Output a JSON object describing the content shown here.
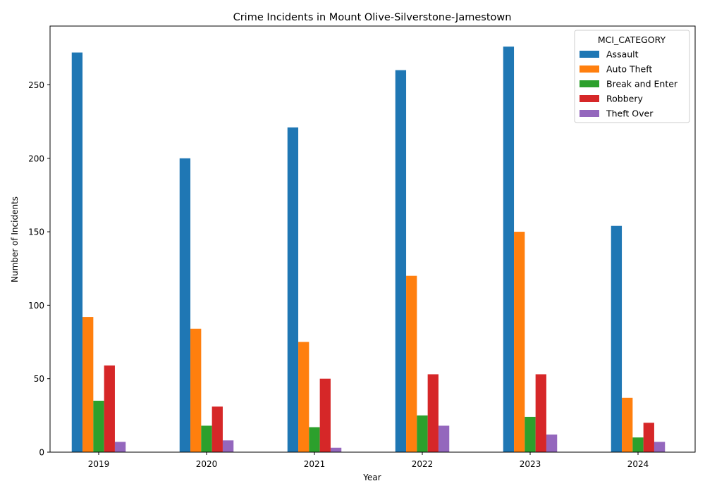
{
  "chart_data": {
    "type": "bar",
    "title": "Crime Incidents in Mount Olive-Silverstone-Jamestown",
    "xlabel": "Year",
    "ylabel": "Number of Incidents",
    "categories": [
      "2019",
      "2020",
      "2021",
      "2022",
      "2023",
      "2024"
    ],
    "ylim": [
      0,
      290
    ],
    "yticks": [
      0,
      50,
      100,
      150,
      200,
      250
    ],
    "legend": {
      "title": "MCI_CATEGORY",
      "placement": "top-right"
    },
    "series": [
      {
        "name": "Assault",
        "color": "#1f77b4",
        "values": [
          272,
          200,
          221,
          260,
          276,
          154
        ]
      },
      {
        "name": "Auto Theft",
        "color": "#ff7f0e",
        "values": [
          92,
          84,
          75,
          120,
          150,
          37
        ]
      },
      {
        "name": "Break and Enter",
        "color": "#2ca02c",
        "values": [
          35,
          18,
          17,
          25,
          24,
          10
        ]
      },
      {
        "name": "Robbery",
        "color": "#d62728",
        "values": [
          59,
          31,
          50,
          53,
          53,
          20
        ]
      },
      {
        "name": "Theft Over",
        "color": "#9467bd",
        "values": [
          7,
          8,
          3,
          18,
          12,
          7
        ]
      }
    ]
  }
}
